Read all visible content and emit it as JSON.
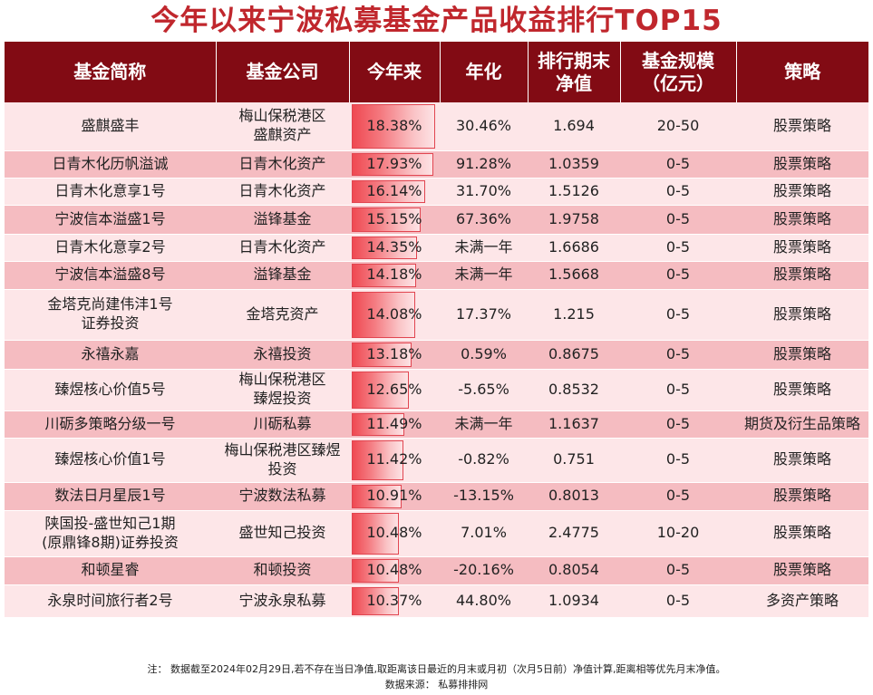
{
  "title": "今年以来宁波私募基金产品收益排行TOP15",
  "headers": {
    "name": "基金简称",
    "company": "基金公司",
    "ytd": "今年来",
    "annual": "年化",
    "nav_line1": "排行期末",
    "nav_line2": "净值",
    "size_line1": "基金规模",
    "size_line2": "（亿元）",
    "strategy": "策略"
  },
  "colors": {
    "header_bg": "#820b14",
    "title": "#c0272d",
    "row_light": "#fde6e8",
    "row_dark": "#f5bcc1",
    "bar": "#ef4952"
  },
  "rows": [
    {
      "name": [
        "盛麒盛丰"
      ],
      "company": [
        "梅山保税港区",
        "盛麒资产"
      ],
      "ytd": "18.38%",
      "ytd_value": 18.38,
      "annual": "30.46%",
      "nav": "1.694",
      "size": "20-50",
      "strategy": "股票策略"
    },
    {
      "name": [
        "日青木化历帆溢诚"
      ],
      "company": [
        "日青木化资产"
      ],
      "ytd": "17.93%",
      "ytd_value": 17.93,
      "annual": "91.28%",
      "nav": "1.0359",
      "size": "0-5",
      "strategy": "股票策略"
    },
    {
      "name": [
        "日青木化意享1号"
      ],
      "company": [
        "日青木化资产"
      ],
      "ytd": "16.14%",
      "ytd_value": 16.14,
      "annual": "31.70%",
      "nav": "1.5126",
      "size": "0-5",
      "strategy": "股票策略"
    },
    {
      "name": [
        "宁波信本溢盛1号"
      ],
      "company": [
        "溢锋基金"
      ],
      "ytd": "15.15%",
      "ytd_value": 15.15,
      "annual": "67.36%",
      "nav": "1.9758",
      "size": "0-5",
      "strategy": "股票策略"
    },
    {
      "name": [
        "日青木化意享2号"
      ],
      "company": [
        "日青木化资产"
      ],
      "ytd": "14.35%",
      "ytd_value": 14.35,
      "annual": "未满一年",
      "nav": "1.6686",
      "size": "0-5",
      "strategy": "股票策略"
    },
    {
      "name": [
        "宁波信本溢盛8号"
      ],
      "company": [
        "溢锋基金"
      ],
      "ytd": "14.18%",
      "ytd_value": 14.18,
      "annual": "未满一年",
      "nav": "1.5668",
      "size": "0-5",
      "strategy": "股票策略"
    },
    {
      "name": [
        "金塔克尚建伟沣1号",
        "证券投资"
      ],
      "company": [
        "金塔克资产"
      ],
      "ytd": "14.08%",
      "ytd_value": 14.08,
      "annual": "17.37%",
      "nav": "1.215",
      "size": "0-5",
      "strategy": "股票策略"
    },
    {
      "name": [
        "永禧永嘉"
      ],
      "company": [
        "永禧投资"
      ],
      "ytd": "13.18%",
      "ytd_value": 13.18,
      "annual": "0.59%",
      "nav": "0.8675",
      "size": "0-5",
      "strategy": "股票策略"
    },
    {
      "name": [
        "臻煜核心价值5号"
      ],
      "company": [
        "梅山保税港区",
        "臻煜投资"
      ],
      "ytd": "12.65%",
      "ytd_value": 12.65,
      "annual": "-5.65%",
      "nav": "0.8532",
      "size": "0-5",
      "strategy": "股票策略"
    },
    {
      "name": [
        "川砺多策略分级一号"
      ],
      "company": [
        "川砺私募"
      ],
      "ytd": "11.49%",
      "ytd_value": 11.49,
      "annual": "未满一年",
      "nav": "1.1637",
      "size": "0-5",
      "strategy": "期货及衍生品策略"
    },
    {
      "name": [
        "臻煜核心价值1号"
      ],
      "company": [
        "梅山保税港区臻煜",
        "投资"
      ],
      "ytd": "11.42%",
      "ytd_value": 11.42,
      "annual": "-0.82%",
      "nav": "0.751",
      "size": "0-5",
      "strategy": "股票策略"
    },
    {
      "name": [
        "数法日月星辰1号"
      ],
      "company": [
        "宁波数法私募"
      ],
      "ytd": "10.91%",
      "ytd_value": 10.91,
      "annual": "-13.15%",
      "nav": "0.8013",
      "size": "0-5",
      "strategy": "股票策略"
    },
    {
      "name": [
        "陕国投-盛世知己1期",
        "(原鼎锋8期)证券投资"
      ],
      "company": [
        "盛世知己投资"
      ],
      "ytd": "10.48%",
      "ytd_value": 10.48,
      "annual": "7.01%",
      "nav": "2.4775",
      "size": "10-20",
      "strategy": "股票策略"
    },
    {
      "name": [
        "和顿星睿"
      ],
      "company": [
        "和顿投资"
      ],
      "ytd": "10.48%",
      "ytd_value": 10.48,
      "annual": "-20.16%",
      "nav": "0.8054",
      "size": "0-5",
      "strategy": "股票策略"
    },
    {
      "name": [
        "永泉时间旅行者2号"
      ],
      "company": [
        "宁波永泉私募"
      ],
      "ytd": "10.37%",
      "ytd_value": 10.37,
      "annual": "44.80%",
      "nav": "1.0934",
      "size": "0-5",
      "strategy": "多资产策略"
    }
  ],
  "footer": {
    "note": "注：  数据截至2024年02月29日,若不存在当日净值,取距离该日最近的月末或月初（次月5日前）净值计算,距离相等优先月末净值。",
    "source": "数据来源：  私募排排网"
  }
}
